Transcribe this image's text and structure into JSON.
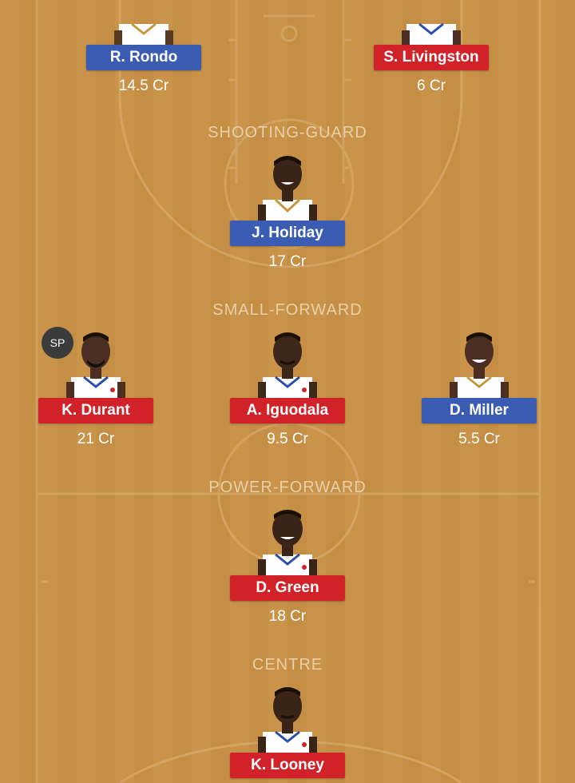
{
  "sections": {
    "shooting_guard": "SHOOTING-GUARD",
    "small_forward": "SMALL-FORWARD",
    "power_forward": "POWER-FORWARD",
    "centre": "CENTRE"
  },
  "players": {
    "rondo": {
      "name": "R. Rondo",
      "credits": "14.5 Cr",
      "team_color": "#3a5db3"
    },
    "livingston": {
      "name": "S. Livingston",
      "credits": "6 Cr",
      "team_color": "#d12229"
    },
    "holiday": {
      "name": "J. Holiday",
      "credits": "17 Cr",
      "team_color": "#3a5db3"
    },
    "durant": {
      "name": "K. Durant",
      "credits": "21 Cr",
      "team_color": "#d12229",
      "badge": "SP"
    },
    "iguodala": {
      "name": "A. Iguodala",
      "credits": "9.5 Cr",
      "team_color": "#d12229"
    },
    "miller": {
      "name": "D. Miller",
      "credits": "5.5 Cr",
      "team_color": "#3a5db3"
    },
    "green": {
      "name": "D. Green",
      "credits": "18 Cr",
      "team_color": "#d12229"
    },
    "looney": {
      "name": "K. Looney",
      "credits": "",
      "team_color": "#d12229"
    }
  }
}
